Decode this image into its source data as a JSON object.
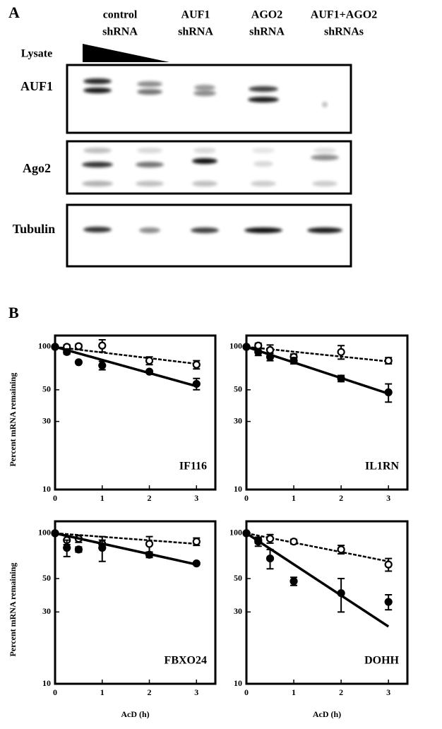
{
  "panel_a": {
    "label": "A",
    "lane_headers": [
      [
        "control",
        "shRNA"
      ],
      [
        "AUF1",
        "shRNA"
      ],
      [
        "AGO2",
        "shRNA"
      ],
      [
        "AUF1+AGO2",
        "shRNAs"
      ]
    ],
    "lysate_label": "Lysate",
    "row_labels": [
      "AUF1",
      "Ago2",
      "Tubulin"
    ]
  },
  "panel_b_label": "B",
  "chart_data": [
    {
      "type": "line",
      "log_y": true,
      "grid": false,
      "ylabel": "Percent mRNA remaining",
      "annotation": "IF116",
      "x": [
        0,
        0.25,
        0.5,
        1,
        2,
        3
      ],
      "xlim": [
        0,
        3.4
      ],
      "xticks": [
        0,
        1,
        2,
        3
      ],
      "ylim": [
        10,
        120
      ],
      "yticks": [
        10,
        30,
        50,
        100
      ],
      "series": [
        {
          "color": "#000000",
          "marker": "open",
          "line_style": "dashed",
          "values": [
            100,
            100,
            101,
            102,
            80,
            75
          ],
          "errors": [
            0,
            3,
            3,
            10,
            5,
            5
          ],
          "fit": {
            "x": [
              0,
              3
            ],
            "values": [
              100,
              76
            ]
          }
        },
        {
          "color": "#000000",
          "marker": "filled",
          "line_style": "solid",
          "values": [
            100,
            92,
            78,
            74,
            67,
            55
          ],
          "errors": [
            0,
            3,
            0,
            5,
            0,
            5
          ],
          "fit": {
            "x": [
              0,
              3
            ],
            "values": [
              100,
              53
            ]
          }
        }
      ]
    },
    {
      "type": "line",
      "log_y": true,
      "grid": false,
      "annotation": "IL1RN",
      "x": [
        0,
        0.25,
        0.5,
        1,
        2,
        3
      ],
      "xlim": [
        0,
        3.4
      ],
      "xticks": [
        0,
        1,
        2,
        3
      ],
      "ylim": [
        10,
        120
      ],
      "yticks": [
        10,
        30,
        50,
        100
      ],
      "series": [
        {
          "color": "#000000",
          "marker": "open",
          "line_style": "dashed",
          "values": [
            100,
            102,
            95,
            85,
            92,
            80
          ],
          "errors": [
            0,
            4,
            8,
            4,
            10,
            4
          ],
          "fit": {
            "x": [
              0,
              3
            ],
            "values": [
              100,
              79
            ]
          }
        },
        {
          "color": "#000000",
          "marker": "filled",
          "line_style": "solid",
          "values": [
            100,
            92,
            85,
            80,
            60,
            48
          ],
          "errors": [
            0,
            5,
            5,
            4,
            3,
            7
          ],
          "fit": {
            "x": [
              0,
              3
            ],
            "values": [
              100,
              47
            ]
          }
        }
      ]
    },
    {
      "type": "line",
      "log_y": true,
      "grid": false,
      "ylabel": "Percent mRNA remaining",
      "xlabel": "AcD (h)",
      "annotation": "FBXO24",
      "x": [
        0,
        0.25,
        0.5,
        1,
        2,
        3
      ],
      "xlim": [
        0,
        3.4
      ],
      "xticks": [
        0,
        1,
        2,
        3
      ],
      "ylim": [
        10,
        120
      ],
      "yticks": [
        10,
        30,
        50,
        100
      ],
      "series": [
        {
          "color": "#000000",
          "marker": "open",
          "line_style": "dashed",
          "values": [
            100,
            90,
            92,
            85,
            85,
            88
          ],
          "errors": [
            0,
            6,
            5,
            5,
            10,
            5
          ],
          "fit": {
            "x": [
              0,
              3
            ],
            "values": [
              100,
              85
            ]
          }
        },
        {
          "color": "#000000",
          "marker": "filled",
          "line_style": "solid",
          "values": [
            100,
            80,
            78,
            80,
            72,
            63
          ],
          "errors": [
            0,
            10,
            3,
            15,
            3,
            0
          ],
          "fit": {
            "x": [
              0,
              3
            ],
            "values": [
              100,
              62
            ]
          }
        }
      ]
    },
    {
      "type": "line",
      "log_y": true,
      "grid": false,
      "xlabel": "AcD (h)",
      "annotation": "DOHH",
      "x": [
        0,
        0.25,
        0.5,
        1,
        2,
        3
      ],
      "xlim": [
        0,
        3.4
      ],
      "xticks": [
        0,
        1,
        2,
        3
      ],
      "ylim": [
        10,
        120
      ],
      "yticks": [
        10,
        30,
        50,
        100
      ],
      "series": [
        {
          "color": "#000000",
          "marker": "open",
          "line_style": "dashed",
          "values": [
            100,
            90,
            92,
            88,
            78,
            62
          ],
          "errors": [
            0,
            4,
            6,
            3,
            5,
            6
          ],
          "fit": {
            "x": [
              0,
              3
            ],
            "values": [
              100,
              65
            ]
          }
        },
        {
          "color": "#000000",
          "marker": "filled",
          "line_style": "solid",
          "values": [
            100,
            88,
            68,
            48,
            40,
            35
          ],
          "errors": [
            0,
            6,
            10,
            3,
            10,
            4
          ],
          "fit": {
            "x": [
              0,
              3
            ],
            "values": [
              100,
              24
            ]
          }
        }
      ]
    }
  ]
}
